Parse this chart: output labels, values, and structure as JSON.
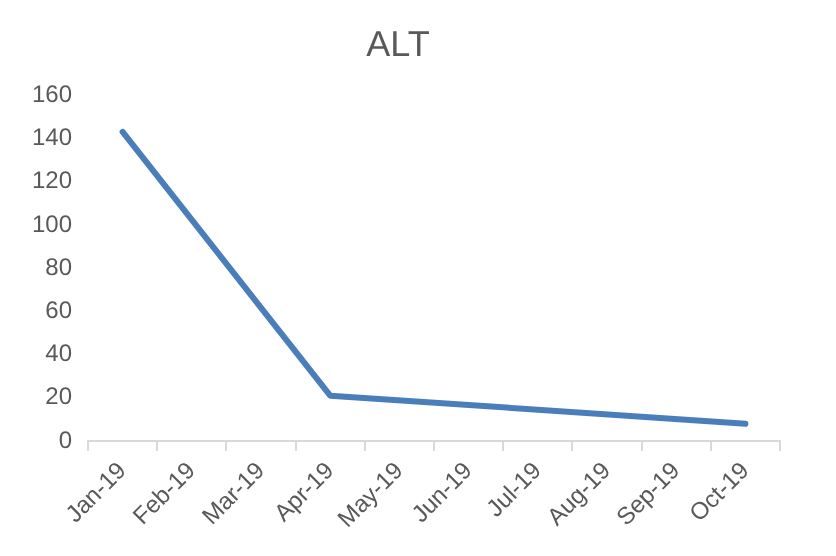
{
  "chart_data": {
    "type": "line",
    "title": "ALT",
    "categories": [
      "Jan-19",
      "Feb-19",
      "Mar-19",
      "Apr-19",
      "May-19",
      "Jun-19",
      "Jul-19",
      "Aug-19",
      "Sep-19",
      "Oct-19"
    ],
    "series": [
      {
        "color": "#4a7ebb",
        "values": [
          143,
          null,
          null,
          21,
          null,
          null,
          null,
          null,
          null,
          8
        ]
      }
    ],
    "ylim": [
      0,
      160
    ],
    "yticks": [
      0,
      20,
      40,
      60,
      80,
      100,
      120,
      140,
      160
    ],
    "grid": false,
    "legend": false,
    "marker": "none",
    "line_style": "solid"
  }
}
